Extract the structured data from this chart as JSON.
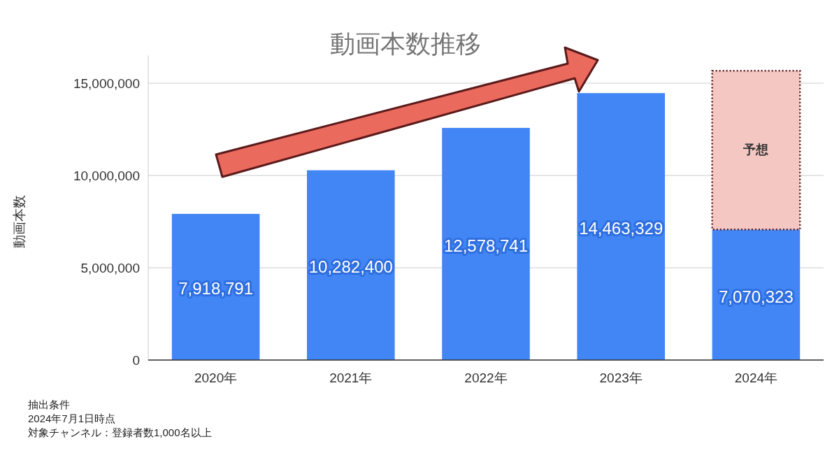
{
  "chart_data": {
    "type": "bar",
    "title": "動画本数推移",
    "ylabel": "動画本数",
    "categories": [
      "2020年",
      "2021年",
      "2022年",
      "2023年",
      "2024年"
    ],
    "stacked": true,
    "series": [
      {
        "color": "#4285f4",
        "values": [
          7918791,
          10282400,
          12578741,
          14463329,
          7070323
        ],
        "value_labels": [
          "7,918,791",
          "10,282,400",
          "12,578,741",
          "14,463,329",
          "7,070,323"
        ]
      },
      {
        "color": "#f4c7c3",
        "line_style": "dotted",
        "values": [
          null,
          null,
          null,
          null,
          8600000
        ],
        "value_labels": [
          null,
          null,
          null,
          null,
          "予想"
        ]
      }
    ],
    "ylim": [
      0,
      16500000
    ],
    "yticks": [
      {
        "value": 0,
        "label": "0"
      },
      {
        "value": 5000000,
        "label": "5,000,000"
      },
      {
        "value": 10000000,
        "label": "10,000,000"
      },
      {
        "value": 15000000,
        "label": "15,000,000"
      }
    ],
    "grid": "y",
    "annotations": [
      "抽出条件",
      "2024年7月1日時点",
      "対象チャンネル：登録者数1,000名以上"
    ]
  }
}
